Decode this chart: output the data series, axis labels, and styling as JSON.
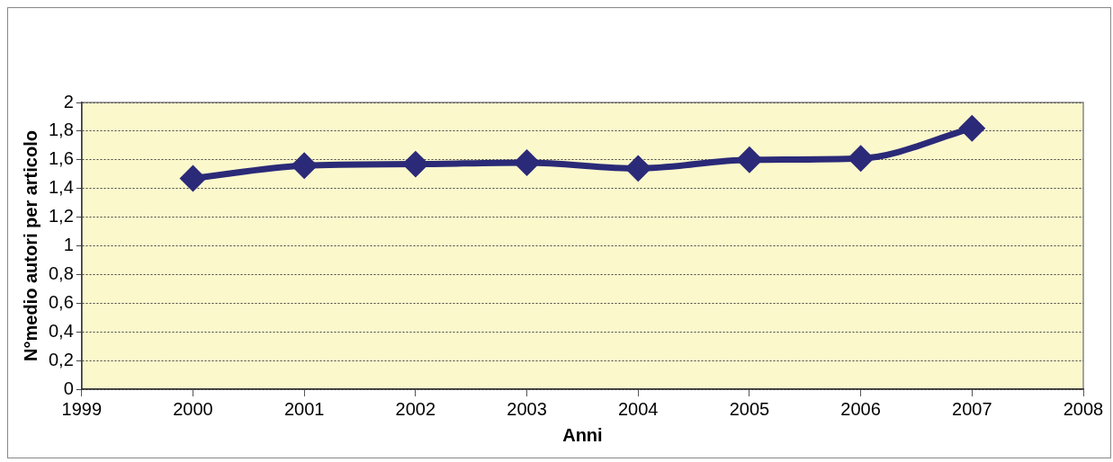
{
  "chart_data": {
    "type": "line",
    "xlabel": "Anni",
    "ylabel": "N°medio autori per articolo",
    "x": [
      2000,
      2001,
      2002,
      2003,
      2004,
      2005,
      2006,
      2007
    ],
    "series": [
      {
        "color": "#2b2a78",
        "values": [
          1.47,
          1.56,
          1.57,
          1.58,
          1.54,
          1.6,
          1.61,
          1.82
        ]
      }
    ],
    "xlim": [
      1999,
      2008
    ],
    "xticks": [
      1999,
      2000,
      2001,
      2002,
      2003,
      2004,
      2005,
      2006,
      2007,
      2008
    ],
    "ylim": [
      0,
      2
    ],
    "yticks": [
      {
        "value": 0,
        "label": "0"
      },
      {
        "value": 0.2,
        "label": "0,2"
      },
      {
        "value": 0.4,
        "label": "0,4"
      },
      {
        "value": 0.6,
        "label": "0,6"
      },
      {
        "value": 0.8,
        "label": "0,8"
      },
      {
        "value": 1,
        "label": "1"
      },
      {
        "value": 1.2,
        "label": "1,2"
      },
      {
        "value": 1.4,
        "label": "1,4"
      },
      {
        "value": 1.6,
        "label": "1,6"
      },
      {
        "value": 1.8,
        "label": "1,8"
      },
      {
        "value": 2,
        "label": "2"
      }
    ],
    "grid": "y",
    "legend": false,
    "marker": "diamond",
    "line_style": "solid"
  }
}
